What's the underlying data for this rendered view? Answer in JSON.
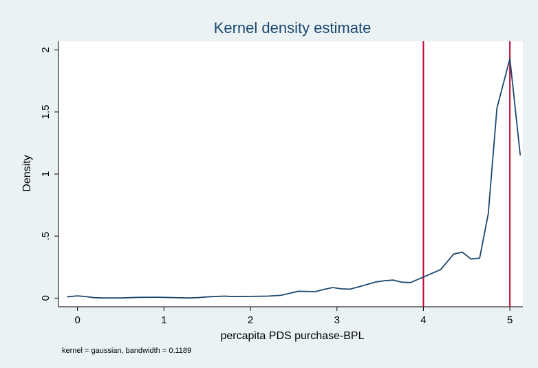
{
  "chart_data": {
    "type": "line",
    "title": "Kernel density estimate",
    "xlabel": "percapita PDS purchase-BPL",
    "ylabel": "Density",
    "note": "kernel = gaussian, bandwidth = 0.1189",
    "x": [
      -0.12,
      0,
      0.1,
      0.2,
      0.3,
      0.5,
      0.7,
      0.9,
      1.0,
      1.1,
      1.3,
      1.4,
      1.5,
      1.7,
      1.8,
      2.0,
      2.2,
      2.35,
      2.45,
      2.55,
      2.75,
      2.85,
      2.95,
      3.05,
      3.15,
      3.3,
      3.45,
      3.55,
      3.65,
      3.75,
      3.85,
      3.95,
      4.1,
      4.2,
      4.35,
      4.45,
      4.55,
      4.65,
      4.75,
      4.85,
      5.0,
      5.12
    ],
    "series": [
      {
        "color": "#1a476f",
        "values": [
          0.01,
          0.018,
          0.012,
          0.003,
          0.001,
          0.001,
          0.006,
          0.007,
          0.006,
          0.004,
          0.001,
          0.004,
          0.01,
          0.016,
          0.012,
          0.014,
          0.016,
          0.022,
          0.038,
          0.055,
          0.052,
          0.07,
          0.085,
          0.075,
          0.072,
          0.1,
          0.13,
          0.14,
          0.145,
          0.128,
          0.125,
          0.155,
          0.2,
          0.23,
          0.355,
          0.37,
          0.315,
          0.322,
          0.68,
          1.53,
          1.93,
          1.15
        ]
      }
    ],
    "xlines": [
      4,
      5
    ],
    "xline_color": "#c10534",
    "xlim": [
      -0.22,
      5.15
    ],
    "ylim": [
      -0.07,
      2.07
    ],
    "xticks": [
      0,
      1,
      2,
      3,
      4,
      5
    ],
    "yticks": [
      0,
      {
        "value": 0.5,
        "label": ".5"
      },
      1,
      1.5,
      2
    ]
  }
}
